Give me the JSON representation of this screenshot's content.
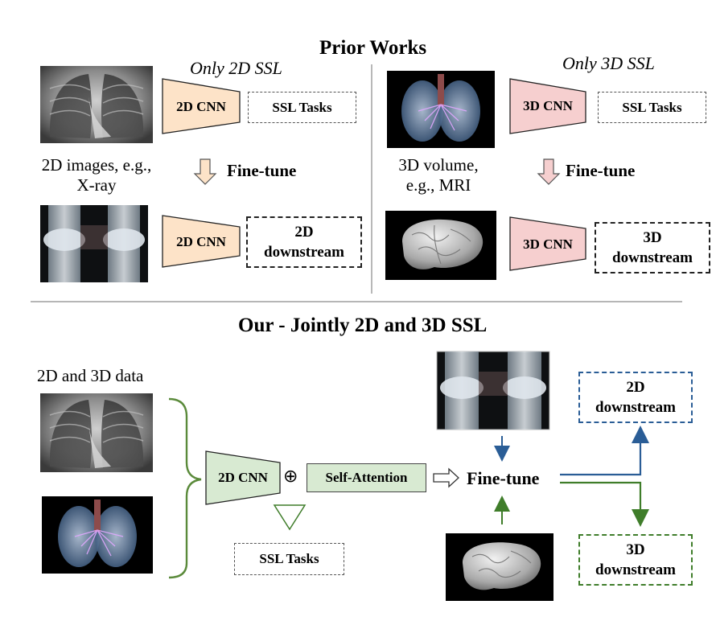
{
  "prior": {
    "title": "Prior Works",
    "left": {
      "heading": "Only 2D SSL",
      "cnn_top": "2D CNN",
      "cnn_bottom": "2D CNN",
      "ssl_tasks": "SSL Tasks",
      "finetune": "Fine-tune",
      "caption_line1": "2D images, e.g.,",
      "caption_line2": "X-ray",
      "downstream_line1": "2D",
      "downstream_line2": "downstream"
    },
    "right": {
      "heading": "Only 3D SSL",
      "cnn_top": "3D CNN",
      "cnn_bottom": "3D CNN",
      "ssl_tasks": "SSL Tasks",
      "finetune": "Fine-tune",
      "caption_line1": "3D volume,",
      "caption_line2": "e.g., MRI",
      "downstream_line1": "3D",
      "downstream_line2": "downstream"
    }
  },
  "ours": {
    "title": "Our - Jointly 2D and 3D SSL",
    "data_label": "2D and 3D data",
    "cnn": "2D CNN",
    "plus": "⊕",
    "attention": "Self-Attention",
    "ssl_tasks": "SSL Tasks",
    "finetune": "Fine-tune",
    "downstream_2d_line1": "2D",
    "downstream_2d_line2": "downstream",
    "downstream_3d_line1": "3D",
    "downstream_3d_line2": "downstream"
  },
  "colors": {
    "cnn_2d_fill": "#fde3c8",
    "cnn_3d_fill": "#f6cfcf",
    "cnn_ours_fill": "#d8ead2",
    "arrow_blue": "#2a5d96",
    "arrow_green": "#3f7d2a",
    "brace_green": "#5a8a3a",
    "divider": "#888888"
  },
  "icons": [
    "chest-xray-image",
    "lung-3d-image",
    "knee-xray-image",
    "brain-3d-image"
  ]
}
